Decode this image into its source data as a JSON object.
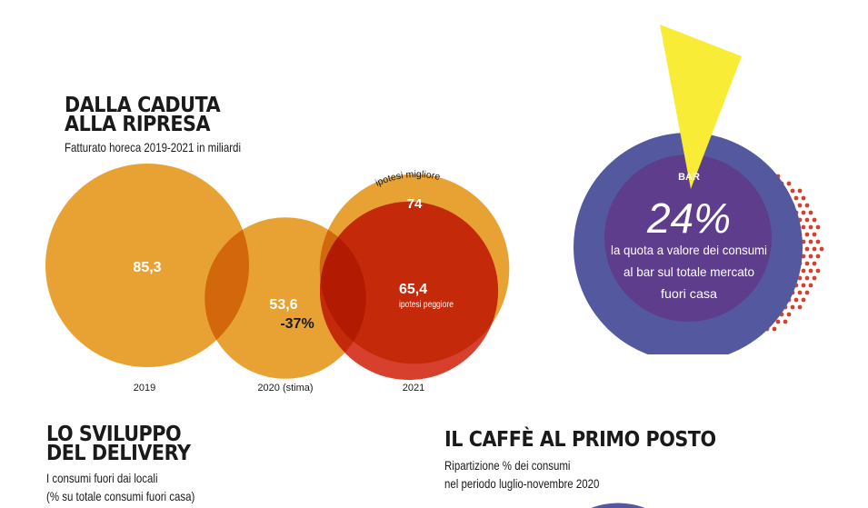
{
  "section1": {
    "title_line1": "DALLA CADUTA",
    "title_line2": "ALLA RIPRESA",
    "subtitle": "Fatturato horeca 2019-2021 in miliardi"
  },
  "colors": {
    "orange": "#E8A233",
    "red": "#D8402E",
    "navy": "#54589E",
    "purple": "#5E3E8C",
    "yellow": "#F8EC37",
    "dots": "#D8402E"
  },
  "chart_data": {
    "type": "bubble",
    "title": "DALLA CADUTA ALLA RIPRESA",
    "subtitle": "Fatturato horeca 2019-2021 in miliardi",
    "categories": [
      "2019",
      "2020 (stima)",
      "2021"
    ],
    "values": [
      85.3,
      53.6,
      74
    ],
    "value_labels": [
      "85,3",
      "53,6",
      "74"
    ],
    "change_2020": "-37%",
    "scenario_2021": {
      "best": {
        "value": 74,
        "label": "74",
        "note": "ipotesi migliore"
      },
      "worst": {
        "value": 65.4,
        "label": "65,4",
        "note": "ipotesi peggiore"
      }
    }
  },
  "bar_callout": {
    "label": "BAR",
    "percent": "24%",
    "line1": "la quota a valore dei consumi",
    "line2": "al bar sul totale mercato",
    "line3": "fuori casa",
    "share": 0.24
  },
  "section2": {
    "title_line1": "LO SVILUPPO",
    "title_line2": "DEL DELIVERY",
    "sub_line1": "I consumi fuori dai locali",
    "sub_line2": "(% su totale consumi fuori casa)"
  },
  "section3": {
    "title": "IL CAFFÈ AL PRIMO POSTO",
    "sub_line1": "Ripartizione % dei consumi",
    "sub_line2": "nel periodo luglio-novembre 2020"
  }
}
